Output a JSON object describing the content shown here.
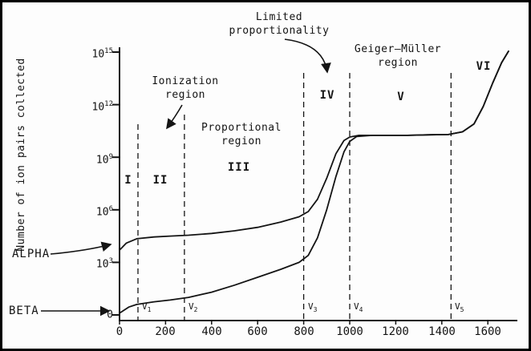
{
  "chart_data": {
    "type": "line",
    "ylabel": "Number of ion pairs collected",
    "xlabel": "",
    "yticks": [
      {
        "base": "10",
        "exp": "15"
      },
      {
        "base": "10",
        "exp": "12"
      },
      {
        "base": "10",
        "exp": "9"
      },
      {
        "base": "10",
        "exp": "6"
      },
      {
        "base": "10",
        "exp": "3"
      },
      {
        "base": "0",
        "exp": ""
      }
    ],
    "xticks": [
      "0",
      "200",
      "400",
      "600",
      "800",
      "1000",
      "1200",
      "1400",
      "1600"
    ],
    "x_volts_range": [
      0,
      1700
    ],
    "y_exponent_range": [
      0,
      15
    ],
    "grid": false,
    "region_numerals": [
      "I",
      "II",
      "III",
      "IV",
      "V",
      "VI"
    ],
    "region_labels": {
      "ionization": "Ionization\nregion",
      "proportional": "Proportional\nregion",
      "limited": "Limited\nproportionality",
      "geiger": "Geiger–Müller\nregion"
    },
    "curve_labels": {
      "alpha": "ALPHA",
      "beta": "BETA"
    },
    "boundary_labels": [
      {
        "v": "V",
        "sub": "1"
      },
      {
        "v": "V",
        "sub": "2"
      },
      {
        "v": "V",
        "sub": "3"
      },
      {
        "v": "V",
        "sub": "4"
      },
      {
        "v": "V",
        "sub": "5"
      }
    ],
    "boundaries_volts": [
      80,
      282,
      800,
      1000,
      1440
    ],
    "series": [
      {
        "name": "alpha",
        "points": [
          [
            0,
            3.7
          ],
          [
            30,
            4.1
          ],
          [
            75,
            4.35
          ],
          [
            150,
            4.45
          ],
          [
            220,
            4.5
          ],
          [
            300,
            4.55
          ],
          [
            400,
            4.65
          ],
          [
            500,
            4.8
          ],
          [
            600,
            5.0
          ],
          [
            700,
            5.3
          ],
          [
            780,
            5.6
          ],
          [
            820,
            5.9
          ],
          [
            860,
            6.6
          ],
          [
            900,
            7.8
          ],
          [
            940,
            9.2
          ],
          [
            975,
            9.95
          ],
          [
            1000,
            10.15
          ],
          [
            1040,
            10.25
          ],
          [
            1150,
            10.25
          ],
          [
            1250,
            10.25
          ],
          [
            1350,
            10.28
          ],
          [
            1430,
            10.3
          ],
          [
            1490,
            10.45
          ],
          [
            1540,
            10.9
          ],
          [
            1580,
            11.9
          ],
          [
            1620,
            13.2
          ],
          [
            1660,
            14.4
          ],
          [
            1690,
            15.05
          ]
        ]
      },
      {
        "name": "beta",
        "points": [
          [
            0,
            0.1
          ],
          [
            40,
            0.45
          ],
          [
            75,
            0.6
          ],
          [
            150,
            0.75
          ],
          [
            220,
            0.85
          ],
          [
            300,
            1.0
          ],
          [
            400,
            1.3
          ],
          [
            500,
            1.7
          ],
          [
            600,
            2.15
          ],
          [
            700,
            2.6
          ],
          [
            780,
            3.0
          ],
          [
            820,
            3.4
          ],
          [
            860,
            4.4
          ],
          [
            900,
            6.0
          ],
          [
            940,
            7.9
          ],
          [
            975,
            9.3
          ],
          [
            1000,
            9.9
          ],
          [
            1030,
            10.18
          ],
          [
            1100,
            10.25
          ],
          [
            1150,
            10.25
          ],
          [
            1250,
            10.25
          ],
          [
            1350,
            10.28
          ],
          [
            1430,
            10.3
          ],
          [
            1490,
            10.45
          ],
          [
            1540,
            10.9
          ],
          [
            1580,
            11.9
          ],
          [
            1620,
            13.2
          ],
          [
            1660,
            14.4
          ],
          [
            1690,
            15.05
          ]
        ]
      }
    ]
  }
}
